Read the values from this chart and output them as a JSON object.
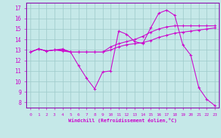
{
  "xlabel": "Windchill (Refroidissement éolien,°C)",
  "bg_color": "#c5e8e8",
  "grid_color": "#a0cccc",
  "line_color": "#cc00cc",
  "spine_color": "#8800aa",
  "xlim": [
    -0.5,
    23.5
  ],
  "ylim": [
    7.5,
    17.5
  ],
  "xticks": [
    0,
    1,
    2,
    3,
    4,
    5,
    6,
    7,
    8,
    9,
    10,
    11,
    12,
    13,
    14,
    15,
    16,
    17,
    18,
    19,
    20,
    21,
    22,
    23
  ],
  "yticks": [
    8,
    9,
    10,
    11,
    12,
    13,
    14,
    15,
    16,
    17
  ],
  "line1_x": [
    0,
    1,
    2,
    3,
    4,
    5,
    6,
    7,
    8,
    9,
    10,
    11,
    12,
    13,
    14,
    15,
    16,
    17,
    18,
    19,
    20,
    21,
    22,
    23
  ],
  "line1_y": [
    12.8,
    13.1,
    12.9,
    13.0,
    12.9,
    12.8,
    11.5,
    10.3,
    9.3,
    10.9,
    11.0,
    14.8,
    14.5,
    13.8,
    13.6,
    15.1,
    16.5,
    16.8,
    16.3,
    13.5,
    12.5,
    9.4,
    8.3,
    7.7
  ],
  "line2_x": [
    0,
    1,
    2,
    3,
    4,
    5,
    6,
    7,
    8,
    9,
    10,
    11,
    12,
    13,
    14,
    15,
    16,
    17,
    18,
    19,
    20,
    21,
    22,
    23
  ],
  "line2_y": [
    12.8,
    13.1,
    12.9,
    13.0,
    13.1,
    12.8,
    12.8,
    12.8,
    12.8,
    12.8,
    13.3,
    13.6,
    13.8,
    14.0,
    14.3,
    14.7,
    15.0,
    15.2,
    15.3,
    15.3,
    15.3,
    15.3,
    15.3,
    15.3
  ],
  "line3_x": [
    0,
    1,
    2,
    3,
    4,
    5,
    6,
    7,
    8,
    9,
    10,
    11,
    12,
    13,
    14,
    15,
    16,
    17,
    18,
    19,
    20,
    21,
    22,
    23
  ],
  "line3_y": [
    12.8,
    13.1,
    12.9,
    13.0,
    13.0,
    12.8,
    12.8,
    12.8,
    12.8,
    12.8,
    13.0,
    13.3,
    13.5,
    13.6,
    13.7,
    13.9,
    14.2,
    14.4,
    14.6,
    14.7,
    14.8,
    14.9,
    15.0,
    15.1
  ]
}
